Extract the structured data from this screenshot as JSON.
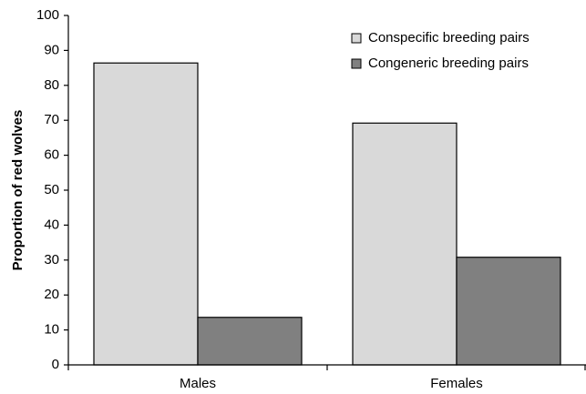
{
  "chart_data": {
    "type": "bar",
    "y_label": "Proportion of red wolves",
    "categories": [
      "Males",
      "Females"
    ],
    "series": [
      {
        "name": "Conspecific breeding pairs",
        "color": "#d9d9d9",
        "values": [
          86.4,
          69.2
        ]
      },
      {
        "name": "Congeneric breeding pairs",
        "color": "#808080",
        "values": [
          13.6,
          30.8
        ]
      }
    ],
    "ylim": [
      0,
      100
    ],
    "yticks": [
      0,
      10,
      20,
      30,
      40,
      50,
      60,
      70,
      80,
      90,
      100
    ],
    "legend": "upper right",
    "grid": false
  }
}
